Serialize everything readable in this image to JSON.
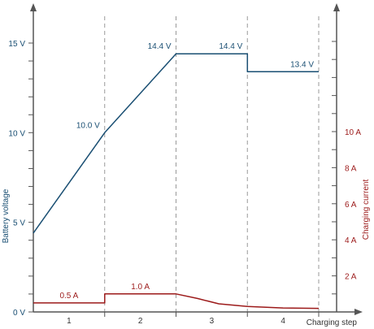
{
  "chart_data": {
    "type": "line",
    "xlabel": "Charging step",
    "x_categories": [
      "1",
      "2",
      "3",
      "4"
    ],
    "x_range": [
      0,
      4
    ],
    "left_axis": {
      "label": "Battery voltage",
      "range": [
        0,
        16
      ],
      "tick_labels": [
        {
          "value": 0,
          "text": "0 V"
        },
        {
          "value": 5,
          "text": "5 V"
        },
        {
          "value": 10,
          "text": "10 V"
        },
        {
          "value": 15,
          "text": "15 V"
        }
      ],
      "minor_step": 1
    },
    "right_axis": {
      "label": "Charging current",
      "range": [
        0,
        16.5
      ],
      "tick_labels": [
        {
          "value": 2,
          "text": "2 A"
        },
        {
          "value": 4,
          "text": "4 A"
        },
        {
          "value": 6,
          "text": "6 A"
        },
        {
          "value": 8,
          "text": "8 A"
        },
        {
          "value": 10,
          "text": "10 A"
        }
      ],
      "minor_step": 1
    },
    "series": [
      {
        "axis": "left",
        "color": "#1a4f73",
        "points": [
          [
            0,
            4.4
          ],
          [
            1,
            10.0
          ],
          [
            2,
            14.4
          ],
          [
            3,
            14.4
          ],
          [
            3,
            13.4
          ],
          [
            4,
            13.4
          ]
        ],
        "labels": [
          {
            "x": 1,
            "y": 10.0,
            "text": "10.0 V",
            "anchor": "left-above"
          },
          {
            "x": 2,
            "y": 14.4,
            "text": "14.4 V",
            "anchor": "left-above"
          },
          {
            "x": 3,
            "y": 14.4,
            "text": "14.4 V",
            "anchor": "left-above"
          },
          {
            "x": 4,
            "y": 13.4,
            "text": "13.4 V",
            "anchor": "left-above"
          }
        ]
      },
      {
        "axis": "right",
        "color": "#9c1a1a",
        "points": [
          [
            0,
            0.5
          ],
          [
            1,
            0.5
          ],
          [
            1,
            1.0
          ],
          [
            2,
            1.0
          ],
          [
            2.3,
            0.75
          ],
          [
            2.6,
            0.45
          ],
          [
            3,
            0.3
          ],
          [
            3.5,
            0.22
          ],
          [
            4,
            0.2
          ]
        ],
        "labels": [
          {
            "x": 0.5,
            "y": 0.5,
            "text": "0.5 A",
            "anchor": "center-above"
          },
          {
            "x": 1.5,
            "y": 1.0,
            "text": "1.0 A",
            "anchor": "center-above"
          }
        ]
      }
    ],
    "phase_separators": [
      1,
      2,
      3,
      4
    ],
    "colors": {
      "voltage": "#1a4f73",
      "current": "#9c1a1a",
      "axis": "#555555",
      "separator": "#999999"
    }
  }
}
